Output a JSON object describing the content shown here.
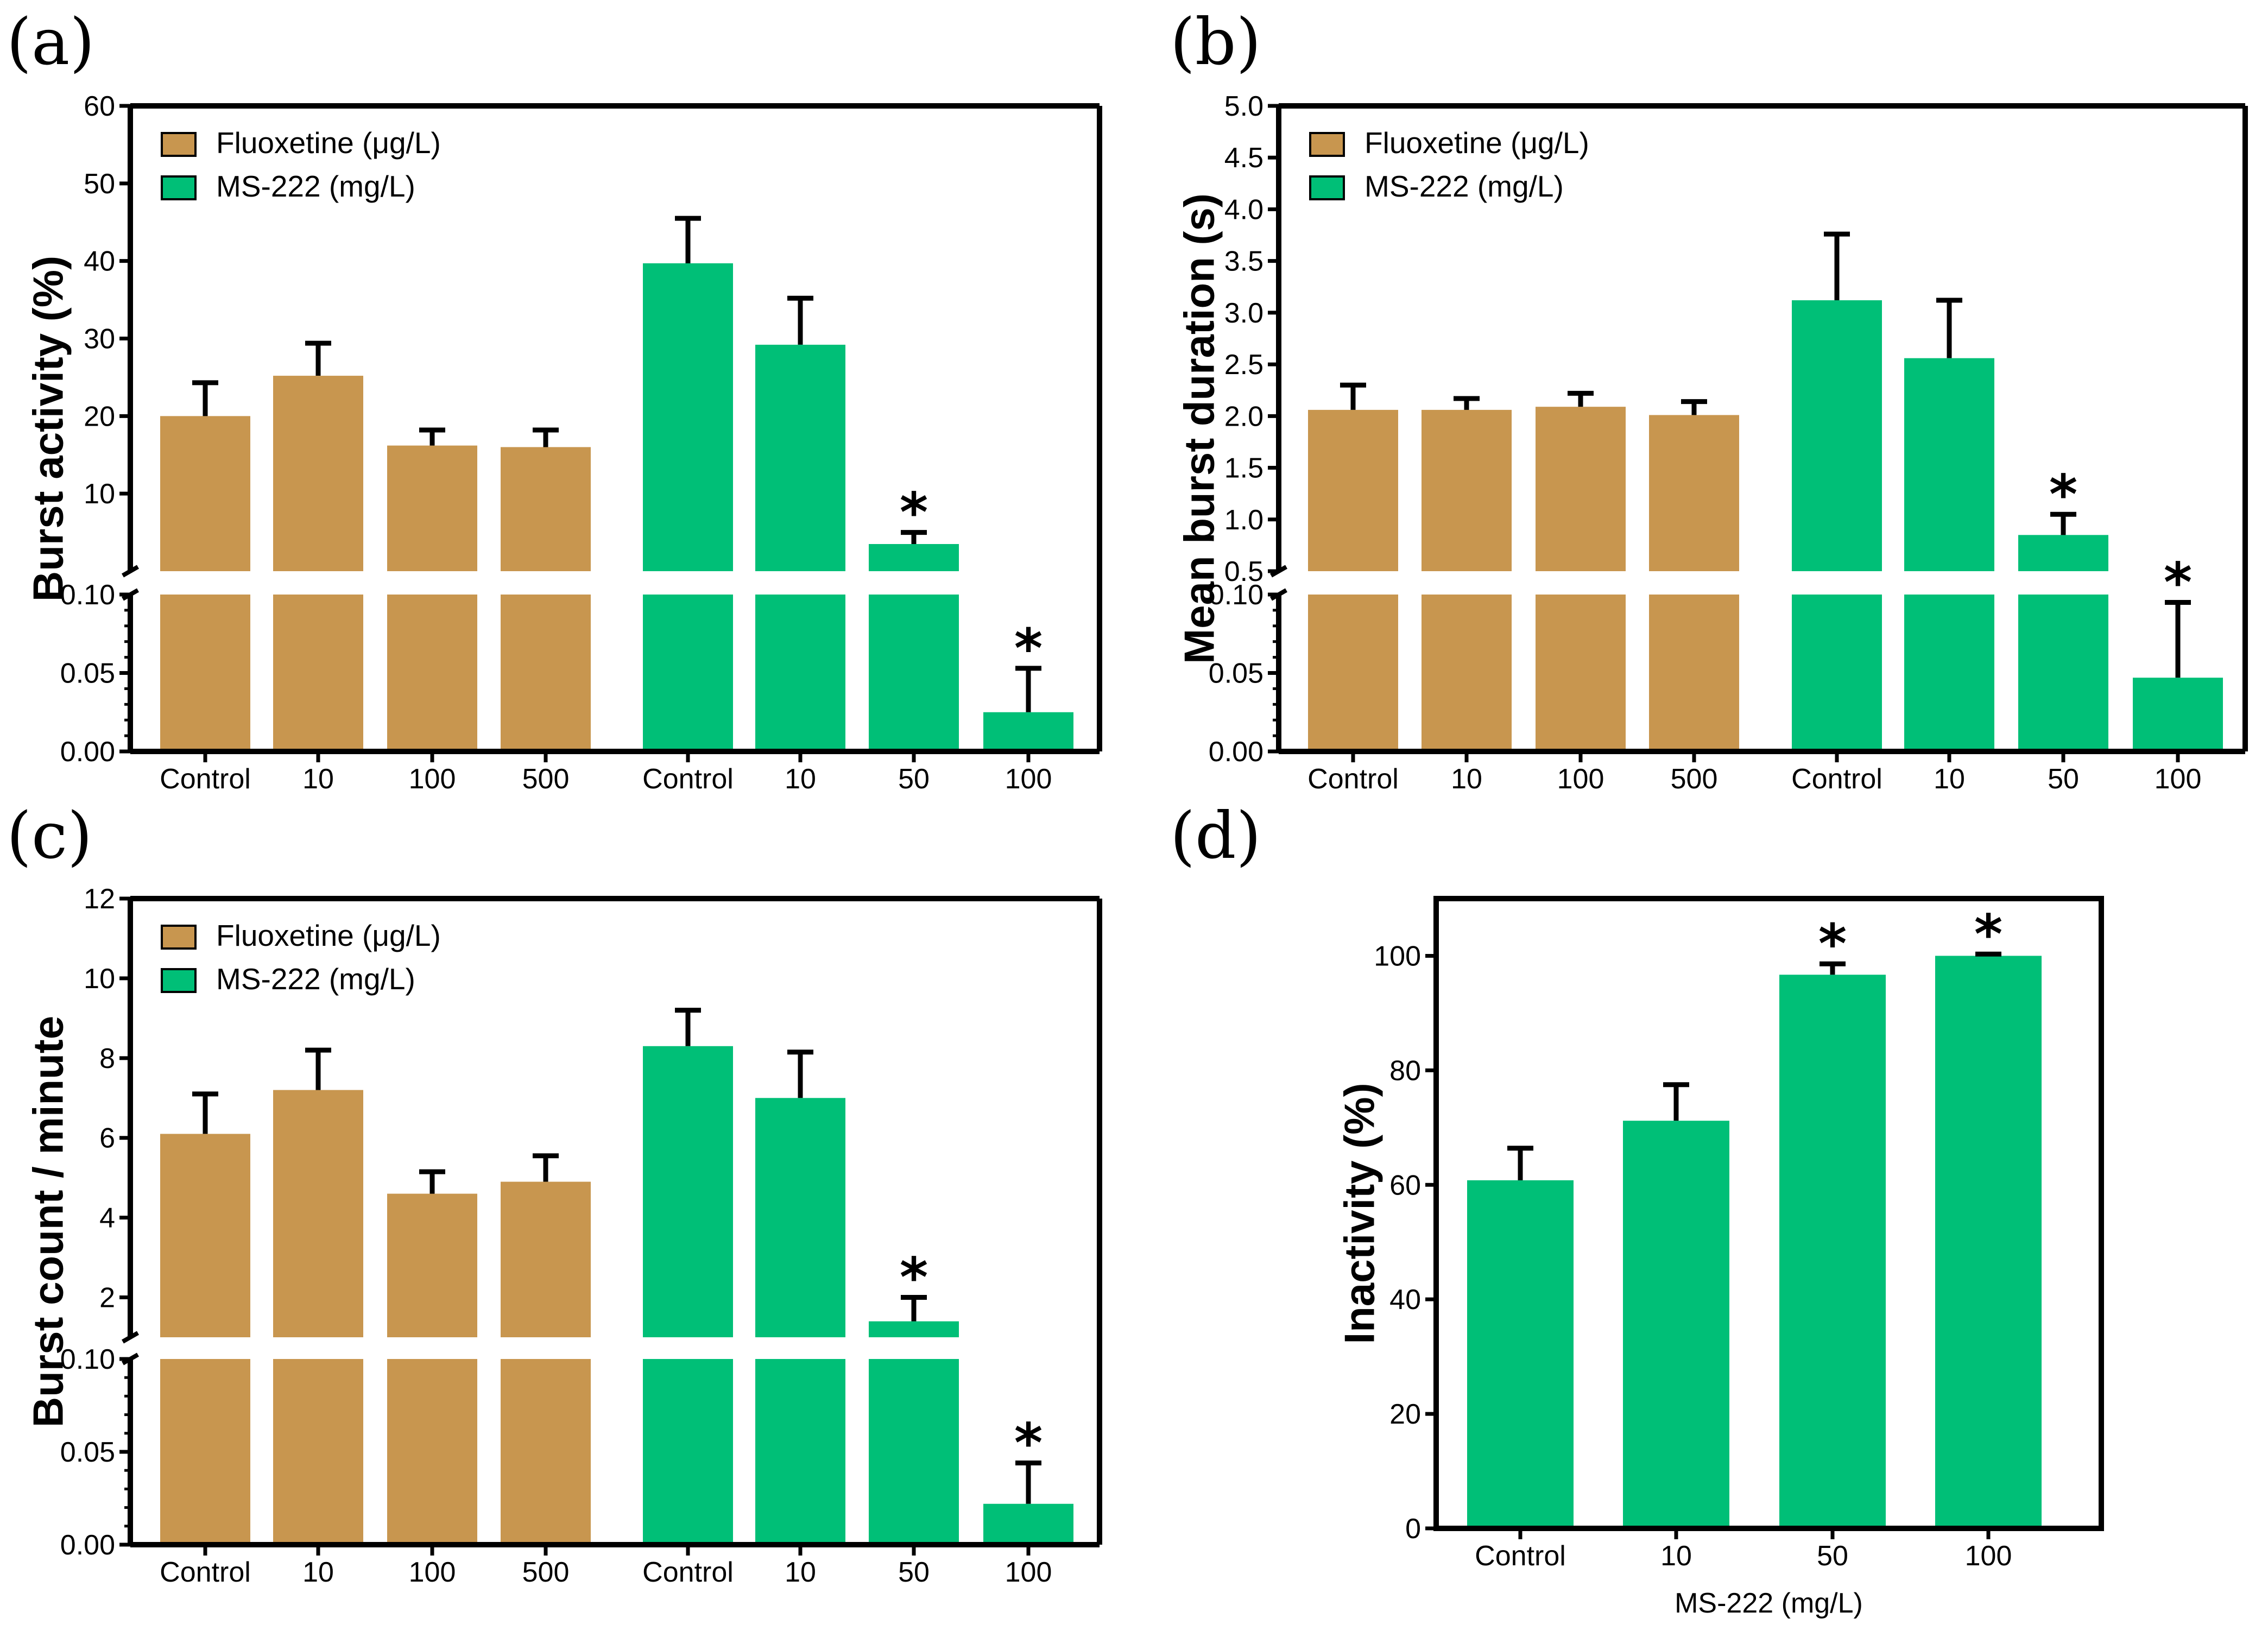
{
  "colors": {
    "fluoxetine": "#C8964F",
    "ms222": "#00BF77",
    "axis": "#000000"
  },
  "chart_data": [
    {
      "panel": "(a)",
      "type": "bar",
      "broken_axis": true,
      "ylabel": "Burst activity (%)",
      "xlabel": "",
      "lower_ylim": [
        0,
        0.1
      ],
      "upper_ylim": [
        0,
        60
      ],
      "lower_ticks": [
        "0.00",
        "0.05",
        "0.10"
      ],
      "upper_ticks": [
        "10",
        "20",
        "30",
        "40",
        "50",
        "60"
      ],
      "legend": [
        "Fluoxetine (μg/L)",
        "MS-222 (mg/L)"
      ],
      "legend_position": "top-left",
      "categories": [
        "Control",
        "10",
        "100",
        "500",
        "Control",
        "10",
        "50",
        "100"
      ],
      "group": [
        "fluoxetine",
        "fluoxetine",
        "fluoxetine",
        "fluoxetine",
        "ms222",
        "ms222",
        "ms222",
        "ms222"
      ],
      "values": [
        20,
        25.2,
        16.2,
        16,
        39.7,
        29.2,
        3.5,
        0.025
      ],
      "errors": [
        4.3,
        4.2,
        2,
        2.2,
        5.8,
        6,
        1.5,
        0.028
      ],
      "significant": [
        false,
        false,
        false,
        false,
        false,
        false,
        true,
        true
      ],
      "significance_marker": "*"
    },
    {
      "panel": "(b)",
      "type": "bar",
      "broken_axis": true,
      "ylabel": "Mean burst duration (s)",
      "xlabel": "",
      "lower_ylim": [
        0,
        0.1
      ],
      "upper_ylim": [
        0.5,
        5.0
      ],
      "lower_ticks": [
        "0.00",
        "0.05",
        "0.10"
      ],
      "upper_ticks": [
        "0.5",
        "1.0",
        "1.5",
        "2.0",
        "2.5",
        "3.0",
        "3.5",
        "4.0",
        "4.5",
        "5.0"
      ],
      "legend": [
        "Fluoxetine (μg/L)",
        "MS-222 (mg/L)"
      ],
      "legend_position": "top-left",
      "categories": [
        "Control",
        "10",
        "100",
        "500",
        "Control",
        "10",
        "50",
        "100"
      ],
      "group": [
        "fluoxetine",
        "fluoxetine",
        "fluoxetine",
        "fluoxetine",
        "ms222",
        "ms222",
        "ms222",
        "ms222"
      ],
      "values": [
        2.06,
        2.06,
        2.09,
        2.01,
        3.12,
        2.56,
        0.85,
        0.047
      ],
      "errors": [
        0.24,
        0.11,
        0.13,
        0.13,
        0.64,
        0.56,
        0.2,
        0.048
      ],
      "significant": [
        false,
        false,
        false,
        false,
        false,
        false,
        true,
        true
      ],
      "significance_marker": "*"
    },
    {
      "panel": "(c)",
      "type": "bar",
      "broken_axis": true,
      "ylabel": "Burst count / minute",
      "xlabel": "",
      "lower_ylim": [
        0,
        0.1
      ],
      "upper_ylim": [
        1,
        12
      ],
      "lower_ticks": [
        "0.00",
        "0.05",
        "0.10"
      ],
      "upper_ticks": [
        "2",
        "4",
        "6",
        "8",
        "10",
        "12"
      ],
      "legend": [
        "Fluoxetine (μg/L)",
        "MS-222 (mg/L)"
      ],
      "legend_position": "top-left",
      "categories": [
        "Control",
        "10",
        "100",
        "500",
        "Control",
        "10",
        "50",
        "100"
      ],
      "group": [
        "fluoxetine",
        "fluoxetine",
        "fluoxetine",
        "fluoxetine",
        "ms222",
        "ms222",
        "ms222",
        "ms222"
      ],
      "values": [
        6.1,
        7.2,
        4.6,
        4.9,
        8.3,
        7,
        1.4,
        0.022
      ],
      "errors": [
        1,
        1,
        0.55,
        0.65,
        0.9,
        1.15,
        0.6,
        0.022
      ],
      "significant": [
        false,
        false,
        false,
        false,
        false,
        false,
        true,
        true
      ],
      "significance_marker": "*"
    },
    {
      "panel": "(d)",
      "type": "bar",
      "broken_axis": false,
      "ylabel": "Inactivity (%)",
      "xlabel": "MS-222 (mg/L)",
      "ylim": [
        0,
        110
      ],
      "ticks": [
        "0",
        "20",
        "40",
        "60",
        "80",
        "100"
      ],
      "categories": [
        "Control",
        "10",
        "50",
        "100"
      ],
      "group": [
        "ms222",
        "ms222",
        "ms222",
        "ms222"
      ],
      "values": [
        60.8,
        71.2,
        96.7,
        100
      ],
      "errors": [
        5.6,
        6.3,
        1.9,
        0.3
      ],
      "significant": [
        false,
        false,
        true,
        true
      ],
      "significance_marker": "*"
    }
  ]
}
